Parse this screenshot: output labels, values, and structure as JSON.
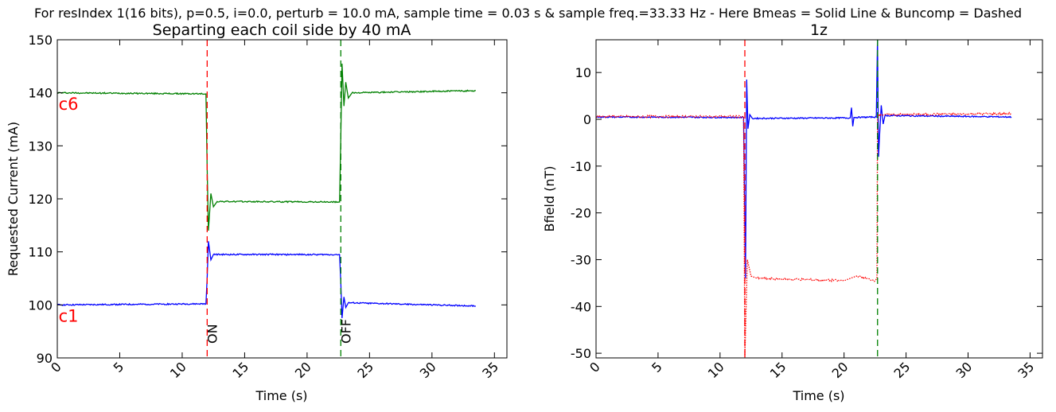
{
  "suptitle": "For resIndex 1(16 bits), p=0.5, i=0.0, perturb = 10.0 mA, sample time = 0.03 s & sample freq.=33.33 Hz - Here Bmeas = Solid Line & Buncomp = Dashed",
  "chart_data": [
    {
      "type": "line",
      "title": "Separting each coil side by 40 mA",
      "xlabel": "Time (s)",
      "ylabel": "Requested Current (mA)",
      "xlim": [
        0,
        36
      ],
      "ylim": [
        90,
        150
      ],
      "xticks": [
        0,
        5,
        10,
        15,
        20,
        25,
        30,
        35
      ],
      "yticks": [
        90,
        100,
        110,
        120,
        130,
        140,
        150
      ],
      "colors": {
        "c6": "#008000",
        "c1": "#0000ff",
        "on": "#ff0000",
        "off": "#008000",
        "label": "#ff0000"
      },
      "series": [
        {
          "name": "c6",
          "points": [
            [
              0.0,
              140.0
            ],
            [
              11.9,
              139.8
            ],
            [
              12.0,
              126.0
            ],
            [
              12.1,
              114.0
            ],
            [
              12.3,
              121.0
            ],
            [
              12.5,
              118.5
            ],
            [
              12.8,
              119.5
            ],
            [
              22.6,
              119.4
            ],
            [
              22.7,
              132.0
            ],
            [
              22.8,
              145.5
            ],
            [
              22.95,
              137.5
            ],
            [
              23.1,
              142.0
            ],
            [
              23.3,
              139.0
            ],
            [
              23.6,
              140.0
            ],
            [
              33.5,
              140.4
            ]
          ]
        },
        {
          "name": "c1",
          "points": [
            [
              0.0,
              100.0
            ],
            [
              11.9,
              100.2
            ],
            [
              12.0,
              105.0
            ],
            [
              12.1,
              112.0
            ],
            [
              12.3,
              108.5
            ],
            [
              12.5,
              109.5
            ],
            [
              22.6,
              109.5
            ],
            [
              22.7,
              104.0
            ],
            [
              22.8,
              97.5
            ],
            [
              22.95,
              101.5
            ],
            [
              23.1,
              99.5
            ],
            [
              23.3,
              100.4
            ],
            [
              33.5,
              99.8
            ]
          ]
        }
      ],
      "vlines": [
        {
          "x": 12.0,
          "label": "ON"
        },
        {
          "x": 22.7,
          "label": "OFF"
        }
      ],
      "annotations": [
        {
          "text": "c6",
          "x": 0.1,
          "y": 138.0
        },
        {
          "text": "c1",
          "x": 0.1,
          "y": 98.0
        }
      ]
    },
    {
      "type": "line",
      "title": "1z",
      "xlabel": "Time (s)",
      "ylabel": "Bfield (nT)",
      "xlim": [
        0,
        36
      ],
      "ylim": [
        -51,
        17
      ],
      "xticks": [
        0,
        5,
        10,
        15,
        20,
        25,
        30,
        35
      ],
      "yticks": [
        -50,
        -40,
        -30,
        -20,
        -10,
        0,
        10
      ],
      "colors": {
        "Bmeas": "#0000ff",
        "Buncomp": "#ff0000",
        "on": "#ff0000",
        "off": "#008000"
      },
      "series": [
        {
          "name": "Bmeas",
          "points": [
            [
              0.0,
              0.5
            ],
            [
              11.9,
              0.4
            ],
            [
              12.05,
              -34.0
            ],
            [
              12.15,
              8.5
            ],
            [
              12.25,
              -2.0
            ],
            [
              12.4,
              1.0
            ],
            [
              12.6,
              0.2
            ],
            [
              20.5,
              0.3
            ],
            [
              20.6,
              2.5
            ],
            [
              20.7,
              -1.5
            ],
            [
              20.8,
              0.4
            ],
            [
              22.6,
              0.5
            ],
            [
              22.7,
              17.0
            ],
            [
              22.78,
              -8.0
            ],
            [
              22.85,
              -4.0
            ],
            [
              23.0,
              3.0
            ],
            [
              23.15,
              -1.0
            ],
            [
              23.3,
              0.8
            ],
            [
              33.5,
              0.5
            ]
          ]
        },
        {
          "name": "Buncomp",
          "points": [
            [
              0.0,
              0.6
            ],
            [
              11.9,
              0.6
            ],
            [
              12.0,
              -51.0
            ],
            [
              12.2,
              -30.0
            ],
            [
              12.5,
              -33.5
            ],
            [
              13.0,
              -34.0
            ],
            [
              16.0,
              -34.2
            ],
            [
              20.0,
              -34.5
            ],
            [
              21.0,
              -33.5
            ],
            [
              22.5,
              -34.5
            ],
            [
              22.65,
              -34.0
            ],
            [
              22.7,
              0.0
            ],
            [
              22.8,
              1.0
            ],
            [
              33.5,
              1.2
            ]
          ]
        }
      ],
      "vlines": [
        {
          "x": 12.0
        },
        {
          "x": 22.7
        }
      ]
    }
  ]
}
